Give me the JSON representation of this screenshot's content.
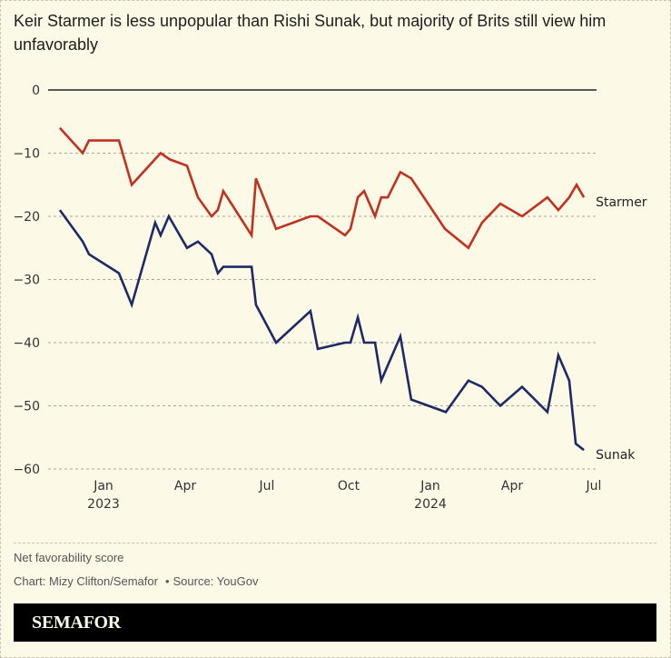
{
  "title": "Keir Starmer is less unpopular than Rishi Sunak, but majority of Brits still view him unfavorably",
  "footer": {
    "note": "Net favorability score",
    "credit": "Chart: Mizy Clifton/Semafor",
    "separator": "•",
    "source": "Source: YouGov",
    "brand": "SEMAFOR"
  },
  "colors": {
    "background": "#fcf9e6",
    "starmer": "#c0311f",
    "sunak": "#1e2a66",
    "zero_line": "#222222",
    "grid": "#a8a69a"
  },
  "chart_data": {
    "type": "line",
    "title": "Keir Starmer is less unpopular than Rishi Sunak, but majority of Brits still view him unfavorably",
    "xlabel": "",
    "ylabel": "Net favorability score",
    "x_unit": "months since Jan 2023",
    "xlim": [
      -1.6,
      17.7
    ],
    "ylim": [
      -60,
      0
    ],
    "grid": true,
    "y_ticks": [
      0,
      -10,
      -20,
      -30,
      -40,
      -50,
      -60
    ],
    "y_tick_labels": [
      "0",
      "−10",
      "−20",
      "−30",
      "−40",
      "−50",
      "−60"
    ],
    "x_ticks": [
      {
        "x": 0,
        "label": "Jan",
        "sublabel": "2023"
      },
      {
        "x": 3,
        "label": "Apr",
        "sublabel": ""
      },
      {
        "x": 6,
        "label": "Jul",
        "sublabel": ""
      },
      {
        "x": 9,
        "label": "Oct",
        "sublabel": ""
      },
      {
        "x": 12,
        "label": "Jan",
        "sublabel": "2024"
      },
      {
        "x": 15,
        "label": "Apr",
        "sublabel": ""
      },
      {
        "x": 18,
        "label": "Jul",
        "sublabel": ""
      }
    ],
    "legend": "direct labels at line ends (right)",
    "series": [
      {
        "name": "Starmer",
        "color": "#c0311f",
        "x": [
          -1.57,
          -0.73,
          -0.5,
          0.6,
          1.07,
          2.13,
          2.47,
          3.1,
          3.5,
          4.0,
          4.23,
          4.43,
          5.47,
          5.63,
          6.37,
          7.63,
          7.9,
          8.9,
          9.1,
          9.37,
          9.6,
          10.0,
          10.23,
          10.47,
          10.93,
          11.33,
          12.57,
          13.43,
          13.93,
          14.6,
          15.4,
          16.33,
          16.73,
          17.13,
          17.4,
          17.67
        ],
        "values": [
          -6,
          -10,
          -8,
          -8,
          -15,
          -10,
          -11,
          -12,
          -17,
          -20,
          -19,
          -16,
          -23,
          -14,
          -22,
          -20,
          -20,
          -23,
          -22,
          -17,
          -16,
          -20,
          -17,
          -17,
          -13,
          -14,
          -22,
          -25,
          -21,
          -18,
          -20,
          -17,
          -19,
          -17,
          -15,
          -17
        ]
      },
      {
        "name": "Sunak",
        "color": "#1e2a66",
        "x": [
          -1.57,
          -0.73,
          -0.5,
          0.6,
          1.07,
          1.93,
          2.13,
          2.43,
          3.1,
          3.5,
          4.0,
          4.23,
          4.43,
          5.47,
          5.63,
          6.37,
          7.63,
          7.9,
          8.9,
          9.1,
          9.37,
          9.6,
          10.0,
          10.23,
          10.93,
          11.33,
          12.6,
          13.43,
          13.93,
          14.6,
          15.4,
          16.33,
          16.73,
          17.13,
          17.37,
          17.67
        ],
        "values": [
          -19,
          -24,
          -26,
          -29,
          -34,
          -21,
          -23,
          -20,
          -25,
          -24,
          -26,
          -29,
          -28,
          -28,
          -34,
          -40,
          -35,
          -41,
          -40,
          -40,
          -36,
          -40,
          -40,
          -46,
          -39,
          -49,
          -51,
          -46,
          -47,
          -50,
          -47,
          -51,
          -42,
          -46,
          -56,
          -57
        ]
      }
    ]
  }
}
